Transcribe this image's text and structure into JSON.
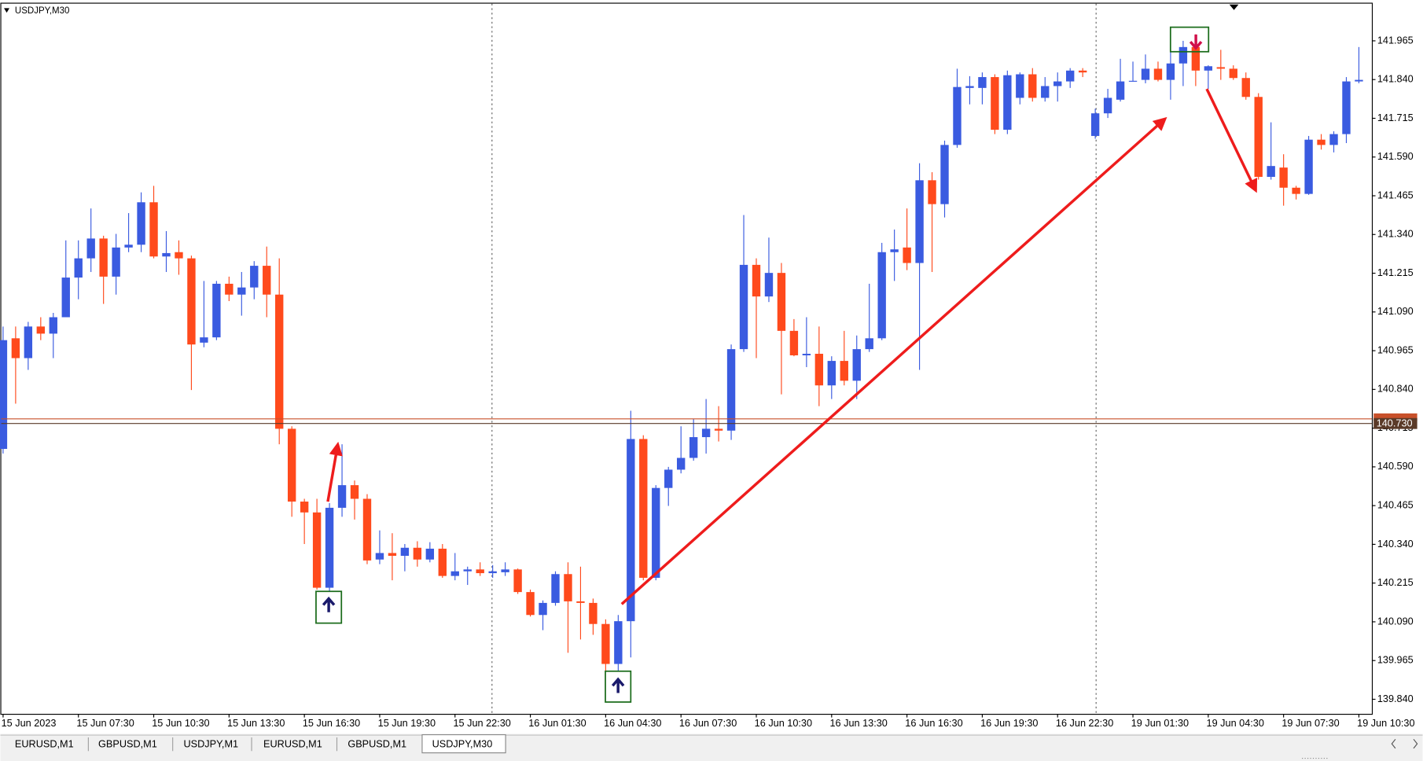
{
  "chart_data": {
    "type": "candlestick",
    "title": "USDJPY,M30",
    "up_color": "#3a5be0",
    "down_color": "#ff4a1c",
    "categories": [
      "15 Jun 2023",
      null,
      null,
      null,
      null,
      null,
      "15 Jun 07:30",
      null,
      null,
      null,
      null,
      null,
      "15 Jun 10:30",
      null,
      null,
      null,
      null,
      null,
      "15 Jun 13:30",
      null,
      null,
      null,
      null,
      null,
      "15 Jun 16:30",
      null,
      null,
      null,
      null,
      null,
      "15 Jun 19:30",
      null,
      null,
      null,
      null,
      null,
      "15 Jun 22:30",
      null,
      null,
      null,
      null,
      null,
      "16 Jun 01:30",
      null,
      null,
      null,
      null,
      null,
      "16 Jun 04:30",
      null,
      null,
      null,
      null,
      null,
      "16 Jun 07:30",
      null,
      null,
      null,
      null,
      null,
      "16 Jun 10:30",
      null,
      null,
      null,
      null,
      null,
      "16 Jun 13:30",
      null,
      null,
      null,
      null,
      null,
      "16 Jun 16:30",
      null,
      null,
      null,
      null,
      null,
      "16 Jun 19:30",
      null,
      null,
      null,
      null,
      null,
      "16 Jun 22:30",
      null,
      null,
      null,
      null,
      null,
      "19 Jun 01:30",
      null,
      null,
      null,
      null,
      null,
      "19 Jun 04:30",
      null,
      null,
      null,
      null,
      null,
      "19 Jun 07:30",
      null,
      null,
      null,
      null,
      null,
      "19 Jun 10:30"
    ],
    "open": [
      140.648,
      141.005,
      140.941,
      141.043,
      141.02,
      141.073,
      141.201,
      141.263,
      141.327,
      141.204,
      141.298,
      141.307,
      141.444,
      141.269,
      141.283,
      141.263,
      140.991,
      141.008,
      141.181,
      141.146,
      141.169,
      141.239,
      141.146,
      140.713,
      140.478,
      140.443,
      140.2,
      140.458,
      140.531,
      140.487,
      140.291,
      140.312,
      140.303,
      140.329,
      140.291,
      140.326,
      140.238,
      140.253,
      140.259,
      140.247,
      140.25,
      140.259,
      140.186,
      140.112,
      140.151,
      140.244,
      140.156,
      140.151,
      140.083,
      139.954,
      140.092,
      140.68,
      140.232,
      140.522,
      140.581,
      140.619,
      140.686,
      140.713,
      140.707,
      140.97,
      141.242,
      141.14,
      141.216,
      141.029,
      140.95,
      140.955,
      140.853,
      140.932,
      140.868,
      140.97,
      141.005,
      141.283,
      141.298,
      141.248,
      141.515,
      141.438,
      141.629,
      141.813,
      141.813,
      141.848,
      141.678,
      141.781,
      141.857,
      141.781,
      141.819,
      141.834,
      141.869,
      141.658,
      141.731,
      141.775,
      141.834,
      141.839,
      141.875,
      141.839,
      141.892,
      141.945,
      141.869,
      141.88,
      141.875,
      141.845,
      141.784,
      141.526,
      141.556,
      141.491,
      141.471,
      141.646,
      141.629,
      141.664,
      141.834
    ],
    "high": [
      141.043,
      141.043,
      141.058,
      141.073,
      141.087,
      141.321,
      141.321,
      141.424,
      141.336,
      141.342,
      141.409,
      141.476,
      141.497,
      141.351,
      141.321,
      141.272,
      141.19,
      141.19,
      141.204,
      141.219,
      141.254,
      141.301,
      141.263,
      140.721,
      140.487,
      140.487,
      140.473,
      140.663,
      140.546,
      140.502,
      140.385,
      140.376,
      140.341,
      140.35,
      140.347,
      140.341,
      140.312,
      140.268,
      140.282,
      140.273,
      140.282,
      140.262,
      140.194,
      140.159,
      140.253,
      140.282,
      140.268,
      140.165,
      140.098,
      140.112,
      140.771,
      140.692,
      140.531,
      140.59,
      140.721,
      140.745,
      140.809,
      140.786,
      140.985,
      141.403,
      141.263,
      141.33,
      141.248,
      141.067,
      141.073,
      141.043,
      140.947,
      141.029,
      141.014,
      141.181,
      141.313,
      141.356,
      141.424,
      141.57,
      141.541,
      141.643,
      141.875,
      141.851,
      141.863,
      141.857,
      141.869,
      141.863,
      141.877,
      141.848,
      141.863,
      141.877,
      141.877,
      141.746,
      141.81,
      141.907,
      141.898,
      141.921,
      141.898,
      141.936,
      141.965,
      141.986,
      141.886,
      141.936,
      141.886,
      141.863,
      141.796,
      141.702,
      141.599,
      141.497,
      141.658,
      141.664,
      141.673,
      141.848,
      141.945
    ],
    "low": [
      140.633,
      140.794,
      140.903,
      140.999,
      140.941,
      141.073,
      141.131,
      141.219,
      141.116,
      141.146,
      141.283,
      141.283,
      141.263,
      141.219,
      141.21,
      140.838,
      140.976,
      140.999,
      141.125,
      141.078,
      141.131,
      141.073,
      140.663,
      140.429,
      140.341,
      140.194,
      140.189,
      140.429,
      140.42,
      140.276,
      140.276,
      140.224,
      140.253,
      140.268,
      140.282,
      140.232,
      140.224,
      140.209,
      140.238,
      140.232,
      140.238,
      140.18,
      140.107,
      140.063,
      140.142,
      139.99,
      140.033,
      140.048,
      139.931,
      139.931,
      139.975,
      140.224,
      140.224,
      140.464,
      140.569,
      140.61,
      140.633,
      140.672,
      140.677,
      140.961,
      140.941,
      141.122,
      140.824,
      140.947,
      140.912,
      140.786,
      140.809,
      140.853,
      140.809,
      140.961,
      140.999,
      141.19,
      141.225,
      140.903,
      141.219,
      141.395,
      141.62,
      141.76,
      141.76,
      141.664,
      141.664,
      141.76,
      141.769,
      141.769,
      141.769,
      141.813,
      141.848,
      141.649,
      141.716,
      141.769,
      141.834,
      141.828,
      141.834,
      141.775,
      141.819,
      141.819,
      141.81,
      141.839,
      141.839,
      141.775,
      141.517,
      141.517,
      141.433,
      141.453,
      141.468,
      141.614,
      141.605,
      141.635,
      141.828
    ],
    "close": [
      140.999,
      140.941,
      141.043,
      141.02,
      141.073,
      141.201,
      141.263,
      141.327,
      141.204,
      141.298,
      141.307,
      141.444,
      141.269,
      141.28,
      141.263,
      140.985,
      141.008,
      141.181,
      141.146,
      141.169,
      141.239,
      141.146,
      140.713,
      140.478,
      140.443,
      140.2,
      140.458,
      140.531,
      140.487,
      140.288,
      140.312,
      140.303,
      140.329,
      140.291,
      140.326,
      140.238,
      140.253,
      140.259,
      140.247,
      140.253,
      140.259,
      140.186,
      140.112,
      140.151,
      140.244,
      140.156,
      140.151,
      140.083,
      139.954,
      140.092,
      140.68,
      140.232,
      140.522,
      140.581,
      140.619,
      140.686,
      140.713,
      140.707,
      140.97,
      141.242,
      141.14,
      141.216,
      141.029,
      140.95,
      140.955,
      140.853,
      140.932,
      140.868,
      140.97,
      141.005,
      141.283,
      141.292,
      141.248,
      141.515,
      141.438,
      141.629,
      141.816,
      141.819,
      141.848,
      141.678,
      141.854,
      141.857,
      141.781,
      141.819,
      141.834,
      141.869,
      141.863,
      141.731,
      141.781,
      141.834,
      141.836,
      141.875,
      141.839,
      141.892,
      141.945,
      141.869,
      141.883,
      141.875,
      141.845,
      141.784,
      141.526,
      141.561,
      141.491,
      141.471,
      141.646,
      141.629,
      141.664,
      141.834,
      141.839
    ],
    "ylim": [
      139.793,
      142.088
    ],
    "yticks": [
      141.965,
      {
        "value": 141.84,
        "label": "141.840"
      },
      141.715,
      {
        "value": 141.59,
        "label": "141.590"
      },
      141.465,
      {
        "value": 141.34,
        "label": "141.340"
      },
      141.215,
      {
        "value": 141.09,
        "label": "141.090"
      },
      140.965,
      {
        "value": 140.84,
        "label": "140.840"
      },
      140.715,
      {
        "value": 140.59,
        "label": "140.590"
      },
      140.465,
      {
        "value": 140.34,
        "label": "140.340"
      },
      140.215,
      {
        "value": 140.09,
        "label": "140.090"
      },
      139.965,
      {
        "value": 139.84,
        "label": "139.840"
      }
    ],
    "ask": 140.745,
    "ask_color": "#c8502a",
    "bid": {
      "value": 140.73,
      "label": "140.730"
    },
    "bid_color": "#5a3a28"
  },
  "tabs": [
    "EURUSD,M1",
    "GBPUSD,M1",
    "USDJPY,M1",
    "EURUSD,M1",
    "GBPUSD,M1",
    "USDJPY,M30"
  ]
}
